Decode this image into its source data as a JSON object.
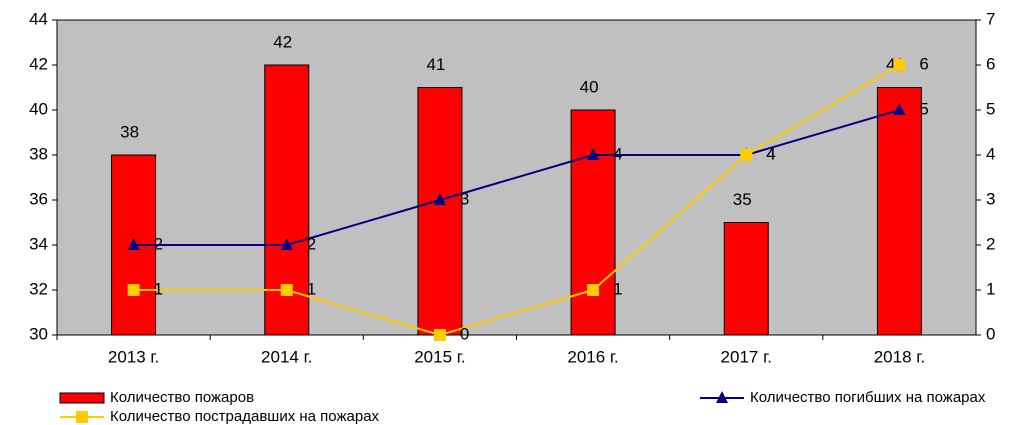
{
  "chart_data": {
    "type": "bar",
    "categories": [
      "2013 г.",
      "2014 г.",
      "2015 г.",
      "2016 г.",
      "2017 г.",
      "2018 г."
    ],
    "ylim": [
      30,
      44
    ],
    "yticks": [
      30,
      32,
      34,
      36,
      38,
      40,
      42,
      44
    ],
    "y2lim": [
      0,
      7
    ],
    "y2ticks": [
      0,
      1,
      2,
      3,
      4,
      5,
      6,
      7
    ],
    "plot_background": "#c0c0c0",
    "series": [
      {
        "name": "Количество пожаров",
        "type": "bar",
        "color": "#ff0000",
        "values": [
          38,
          42,
          41,
          40,
          35,
          41
        ]
      },
      {
        "name": "Количество погибших на пожарах",
        "type": "line",
        "marker": "triangle",
        "axis": "y2",
        "color": "#000080",
        "values": [
          2,
          2,
          3,
          4,
          4,
          5
        ]
      },
      {
        "name": "Количество пострадавших на пожарах",
        "type": "line",
        "marker": "square",
        "axis": "y2",
        "color": "#ffcc00",
        "values": [
          1,
          1,
          0,
          1,
          4,
          6
        ]
      }
    ]
  }
}
